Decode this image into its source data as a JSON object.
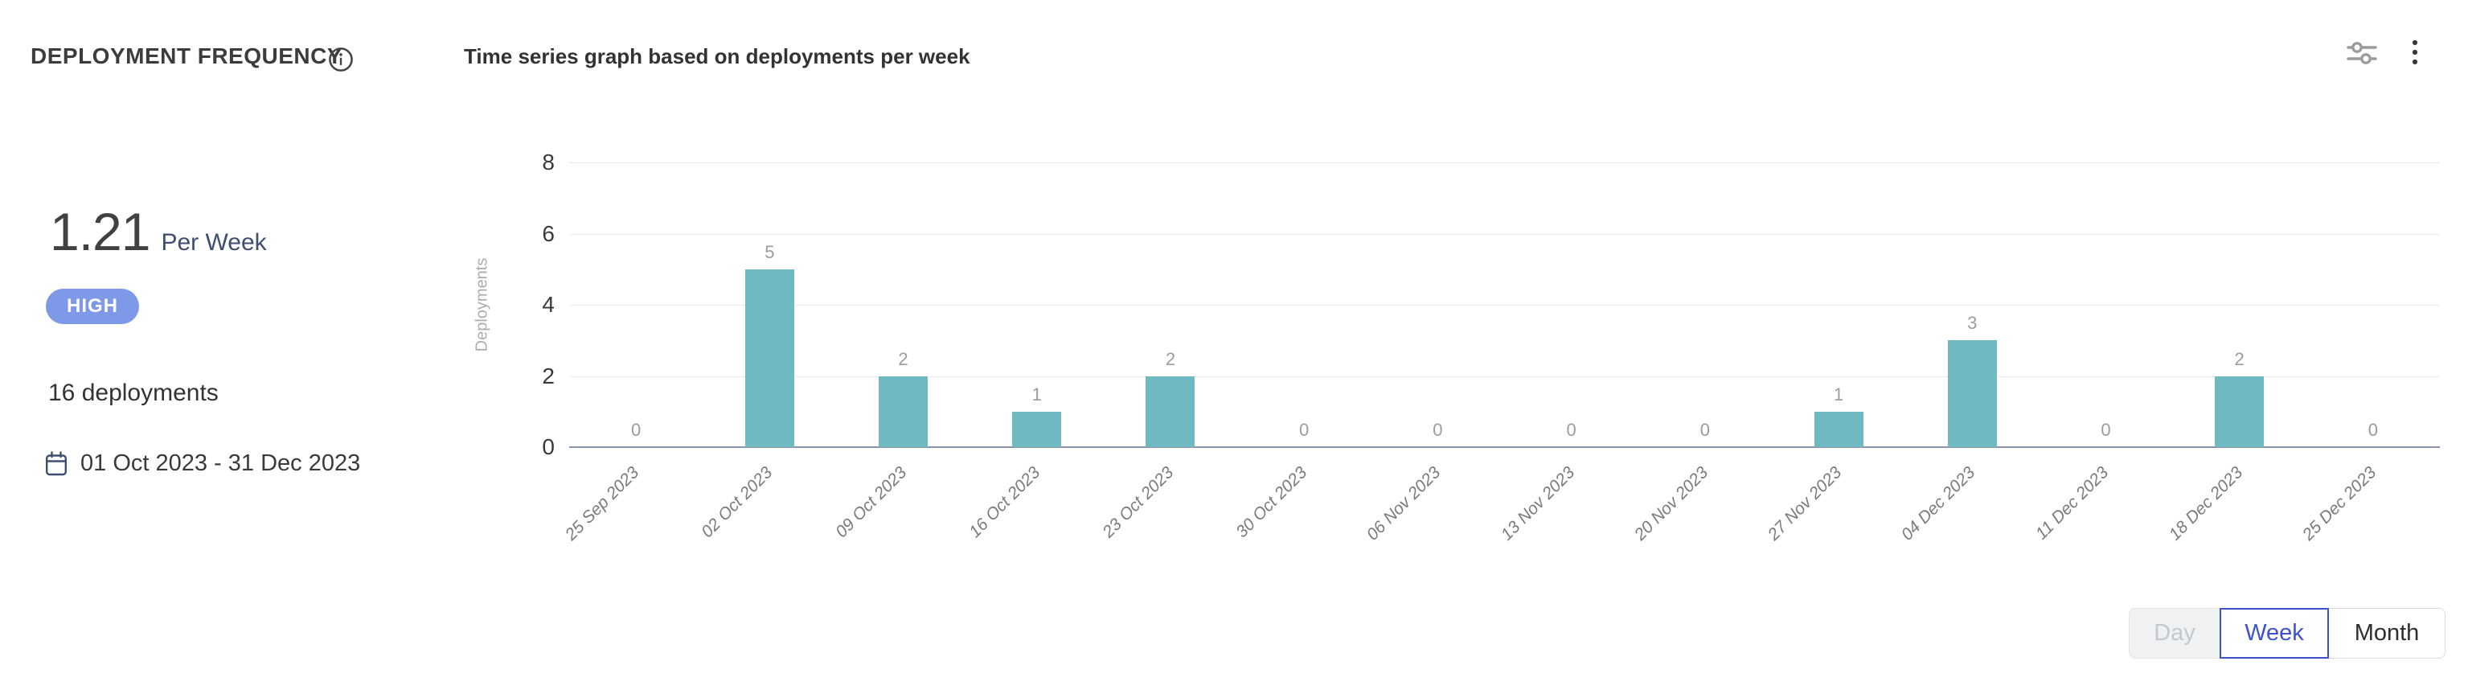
{
  "header": {
    "title": "DEPLOYMENT FREQUENCY",
    "subtitle": "Time series graph based on deployments per week"
  },
  "icons": {
    "info": "info-icon",
    "filter_sliders": "filter-sliders-icon",
    "more_menu": "kebab-menu-icon",
    "calendar": "calendar-icon"
  },
  "stats": {
    "rate_value": "1.21",
    "rate_unit": "Per Week",
    "level_badge": "HIGH",
    "total_deployments": "16 deployments",
    "date_range": "01 Oct 2023 - 31 Dec 2023"
  },
  "chart_data": {
    "type": "bar",
    "title": "Time series graph based on deployments per week",
    "categories": [
      "25 Sep 2023",
      "02 Oct 2023",
      "09 Oct 2023",
      "16 Oct 2023",
      "23 Oct 2023",
      "30 Oct 2023",
      "06 Nov 2023",
      "13 Nov 2023",
      "20 Nov 2023",
      "27 Nov 2023",
      "04 Dec 2023",
      "11 Dec 2023",
      "18 Dec 2023",
      "25 Dec 2023"
    ],
    "values": [
      0,
      5,
      2,
      1,
      2,
      0,
      0,
      0,
      0,
      1,
      3,
      0,
      2,
      0
    ],
    "xlabel": "",
    "ylabel": "Deployments",
    "yticks": [
      0,
      2,
      4,
      6,
      8
    ],
    "ylim": [
      0,
      8
    ],
    "grid": true,
    "legend": "none",
    "bar_color": "#6FB9C2"
  },
  "controls": {
    "granularity": [
      {
        "label": "Day",
        "state": "disabled"
      },
      {
        "label": "Week",
        "state": "selected"
      },
      {
        "label": "Month",
        "state": "default"
      }
    ]
  },
  "colors": {
    "bar": "#6FB9C2",
    "badge_bg": "#7E99E8",
    "selected_blue": "#3D52CC",
    "navy_accent": "#3E4E6E",
    "gridline": "#E9E9E9",
    "axis_baseline": "#8A94A8"
  }
}
